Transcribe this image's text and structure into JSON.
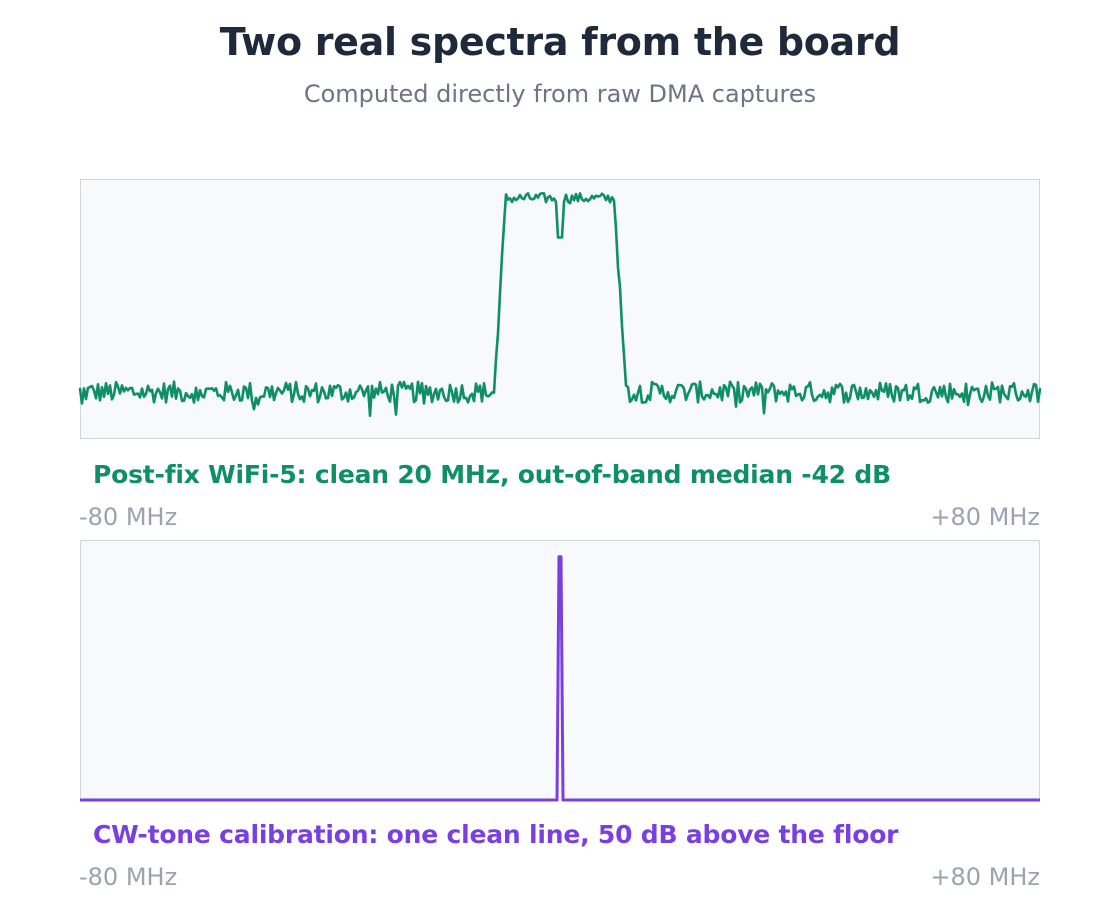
{
  "header": {
    "title": "Two real spectra from the board",
    "subtitle": "Computed directly from raw DMA captures"
  },
  "colors": {
    "wifi": "#0e8f65",
    "cw": "#7a3fe0",
    "panel_bg": "#f7f9fb",
    "panel_border": "#cdd5df",
    "axis_text": "#9aa3af"
  },
  "chart_data": [
    {
      "type": "line",
      "caption": "Post-fix WiFi-5: clean 20 MHz, out-of-band median -42 dB",
      "x_min_label": "-80 MHz",
      "x_max_label": "+80 MHz",
      "xlim": [
        -80,
        80
      ],
      "ylim": [
        -52,
        2
      ],
      "grid": false,
      "series": [
        {
          "color": "#0e8f65",
          "band_edges_mhz": [
            -10,
            10
          ],
          "in_band_level_db": 0,
          "out_of_band_median_db": -42,
          "center_notch_mhz": 0,
          "center_notch_db": -9
        }
      ]
    },
    {
      "type": "line",
      "caption": "CW-tone calibration: one clean line, 50 dB above the floor",
      "x_min_label": "-80 MHz",
      "x_max_label": "+80 MHz",
      "xlim": [
        -80,
        80
      ],
      "ylim": [
        -50,
        2
      ],
      "grid": false,
      "series": [
        {
          "color": "#7a3fe0",
          "tone_mhz": 0,
          "tone_db": 0,
          "floor_db": -50
        }
      ]
    }
  ]
}
